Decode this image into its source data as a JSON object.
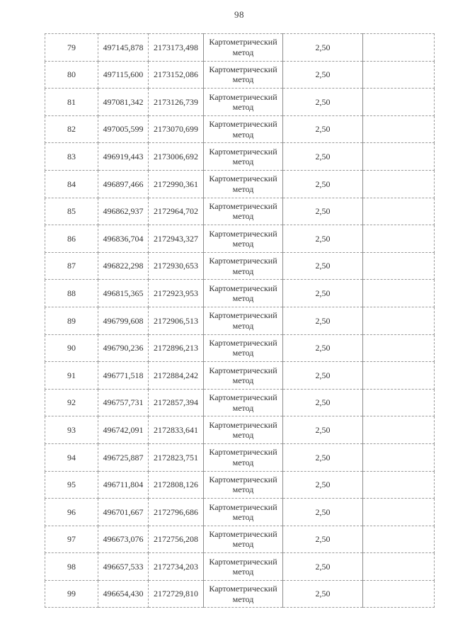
{
  "page_number": "98",
  "table": {
    "columns": [
      "point_number",
      "coordinate_x",
      "coordinate_y",
      "method",
      "precision",
      "note"
    ],
    "rows": [
      {
        "n": "79",
        "x": "497145,878",
        "y": "2173173,498",
        "method": "Картометрический метод",
        "precision": "2,50",
        "note": ""
      },
      {
        "n": "80",
        "x": "497115,600",
        "y": "2173152,086",
        "method": "Картометрический метод",
        "precision": "2,50",
        "note": ""
      },
      {
        "n": "81",
        "x": "497081,342",
        "y": "2173126,739",
        "method": "Картометрический метод",
        "precision": "2,50",
        "note": ""
      },
      {
        "n": "82",
        "x": "497005,599",
        "y": "2173070,699",
        "method": "Картометрический метод",
        "precision": "2,50",
        "note": ""
      },
      {
        "n": "83",
        "x": "496919,443",
        "y": "2173006,692",
        "method": "Картометрический метод",
        "precision": "2,50",
        "note": ""
      },
      {
        "n": "84",
        "x": "496897,466",
        "y": "2172990,361",
        "method": "Картометрический метод",
        "precision": "2,50",
        "note": ""
      },
      {
        "n": "85",
        "x": "496862,937",
        "y": "2172964,702",
        "method": "Картометрический метод",
        "precision": "2,50",
        "note": ""
      },
      {
        "n": "86",
        "x": "496836,704",
        "y": "2172943,327",
        "method": "Картометрический метод",
        "precision": "2,50",
        "note": ""
      },
      {
        "n": "87",
        "x": "496822,298",
        "y": "2172930,653",
        "method": "Картометрический метод",
        "precision": "2,50",
        "note": ""
      },
      {
        "n": "88",
        "x": "496815,365",
        "y": "2172923,953",
        "method": "Картометрический метод",
        "precision": "2,50",
        "note": ""
      },
      {
        "n": "89",
        "x": "496799,608",
        "y": "2172906,513",
        "method": "Картометрический метод",
        "precision": "2,50",
        "note": ""
      },
      {
        "n": "90",
        "x": "496790,236",
        "y": "2172896,213",
        "method": "Картометрический метод",
        "precision": "2,50",
        "note": ""
      },
      {
        "n": "91",
        "x": "496771,518",
        "y": "2172884,242",
        "method": "Картометрический метод",
        "precision": "2,50",
        "note": ""
      },
      {
        "n": "92",
        "x": "496757,731",
        "y": "2172857,394",
        "method": "Картометрический метод",
        "precision": "2,50",
        "note": ""
      },
      {
        "n": "93",
        "x": "496742,091",
        "y": "2172833,641",
        "method": "Картометрический метод",
        "precision": "2,50",
        "note": ""
      },
      {
        "n": "94",
        "x": "496725,887",
        "y": "2172823,751",
        "method": "Картометрический метод",
        "precision": "2,50",
        "note": ""
      },
      {
        "n": "95",
        "x": "496711,804",
        "y": "2172808,126",
        "method": "Картометрический метод",
        "precision": "2,50",
        "note": ""
      },
      {
        "n": "96",
        "x": "496701,667",
        "y": "2172796,686",
        "method": "Картометрический метод",
        "precision": "2,50",
        "note": ""
      },
      {
        "n": "97",
        "x": "496673,076",
        "y": "2172756,208",
        "method": "Картометрический метод",
        "precision": "2,50",
        "note": ""
      },
      {
        "n": "98",
        "x": "496657,533",
        "y": "2172734,203",
        "method": "Картометрический метод",
        "precision": "2,50",
        "note": ""
      },
      {
        "n": "99",
        "x": "496654,430",
        "y": "2172729,810",
        "method": "Картометрический метод",
        "precision": "2,50",
        "note": ""
      }
    ]
  }
}
